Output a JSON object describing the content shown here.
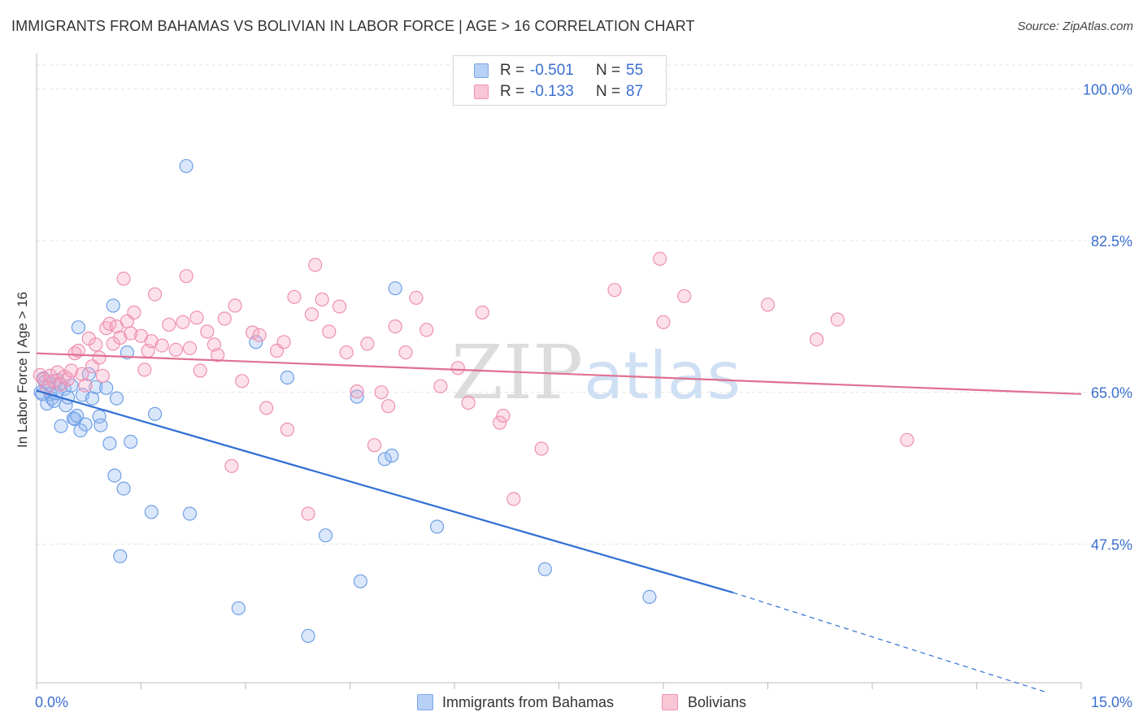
{
  "title": "IMMIGRANTS FROM BAHAMAS VS BOLIVIAN IN LABOR FORCE | AGE > 16 CORRELATION CHART",
  "source": "Source: ZipAtlas.com",
  "watermark": {
    "zip": "ZIP",
    "atlas": "atlas"
  },
  "legend": {
    "rows": [
      {
        "r_label": "R =",
        "r_value": "-0.501",
        "n_label": "N =",
        "n_value": "55",
        "color": "#6f9fe6"
      },
      {
        "r_label": "R =",
        "r_value": "-0.133",
        "n_label": "N =",
        "n_value": "87",
        "color": "#ef8fb1"
      }
    ]
  },
  "bottom_legend": [
    "Immigrants from Bahamas",
    "Bolivians"
  ],
  "chart_data": {
    "type": "scatter",
    "xlabel": "",
    "ylabel": "In Labor Force | Age > 16",
    "xlim": [
      0,
      15
    ],
    "ylim": [
      31.5,
      103.5
    ],
    "x_tick_labels": [
      "0.0%",
      "15.0%"
    ],
    "y_ticks": [
      47.5,
      65.0,
      82.5,
      100.0
    ],
    "y_tick_labels": [
      "47.5%",
      "65.0%",
      "82.5%",
      "100.0%"
    ],
    "grid": "horizontal dashed",
    "legend_position": "top-center",
    "series": [
      {
        "name": "Immigrants from Bahamas",
        "color": "#6f9fe6",
        "fill": "rgba(150,185,240,0.35)",
        "trend": {
          "x": [
            0,
            10
          ],
          "y": [
            65.2,
            41.9
          ],
          "dashed_to_x": 14.5,
          "dashed_end_y": 30.4
        },
        "points": [
          [
            0.06,
            65.0
          ],
          [
            0.1,
            66.6
          ],
          [
            0.12,
            66.2
          ],
          [
            0.15,
            63.7
          ],
          [
            0.18,
            65.9
          ],
          [
            0.2,
            64.8
          ],
          [
            0.22,
            64.3
          ],
          [
            0.25,
            64.0
          ],
          [
            0.3,
            66.4
          ],
          [
            0.33,
            66.0
          ],
          [
            0.35,
            61.1
          ],
          [
            0.4,
            65.4
          ],
          [
            0.42,
            63.5
          ],
          [
            0.45,
            64.4
          ],
          [
            0.5,
            65.8
          ],
          [
            0.53,
            62.0
          ],
          [
            0.55,
            61.9
          ],
          [
            0.58,
            62.3
          ],
          [
            0.6,
            72.5
          ],
          [
            0.63,
            60.6
          ],
          [
            0.66,
            64.7
          ],
          [
            0.7,
            61.3
          ],
          [
            0.75,
            67.1
          ],
          [
            0.8,
            64.3
          ],
          [
            0.85,
            65.6
          ],
          [
            0.9,
            62.2
          ],
          [
            0.92,
            61.2
          ],
          [
            1.0,
            65.5
          ],
          [
            1.05,
            59.1
          ],
          [
            1.1,
            75.0
          ],
          [
            1.12,
            55.4
          ],
          [
            1.15,
            64.3
          ],
          [
            1.2,
            46.1
          ],
          [
            1.25,
            53.9
          ],
          [
            1.3,
            69.6
          ],
          [
            1.35,
            59.3
          ],
          [
            1.65,
            51.2
          ],
          [
            2.15,
            91.1
          ],
          [
            2.2,
            51.0
          ],
          [
            2.9,
            40.1
          ],
          [
            3.15,
            70.8
          ],
          [
            3.6,
            66.7
          ],
          [
            3.9,
            36.9
          ],
          [
            4.15,
            48.5
          ],
          [
            4.6,
            64.5
          ],
          [
            4.65,
            43.2
          ],
          [
            5.0,
            57.3
          ],
          [
            5.1,
            57.7
          ],
          [
            5.15,
            77.0
          ],
          [
            5.75,
            49.5
          ],
          [
            7.3,
            44.6
          ],
          [
            8.8,
            41.4
          ],
          [
            0.08,
            64.8
          ],
          [
            0.28,
            64.9
          ],
          [
            1.7,
            62.5
          ]
        ]
      },
      {
        "name": "Bolivians",
        "color": "#ef8fb1",
        "fill": "rgba(245,170,195,0.35)",
        "trend": {
          "x": [
            0,
            15
          ],
          "y": [
            69.5,
            64.8
          ]
        },
        "points": [
          [
            0.05,
            67.0
          ],
          [
            0.1,
            66.5
          ],
          [
            0.15,
            65.5
          ],
          [
            0.2,
            66.9
          ],
          [
            0.25,
            66.3
          ],
          [
            0.3,
            67.3
          ],
          [
            0.35,
            65.9
          ],
          [
            0.4,
            66.8
          ],
          [
            0.45,
            66.5
          ],
          [
            0.5,
            67.5
          ],
          [
            0.55,
            69.5
          ],
          [
            0.6,
            69.8
          ],
          [
            0.65,
            67.1
          ],
          [
            0.7,
            65.8
          ],
          [
            0.75,
            71.2
          ],
          [
            0.8,
            68.0
          ],
          [
            0.85,
            70.5
          ],
          [
            0.9,
            69.0
          ],
          [
            0.95,
            66.9
          ],
          [
            1.0,
            72.4
          ],
          [
            1.05,
            72.9
          ],
          [
            1.1,
            70.6
          ],
          [
            1.15,
            72.6
          ],
          [
            1.2,
            71.3
          ],
          [
            1.25,
            78.1
          ],
          [
            1.3,
            73.2
          ],
          [
            1.35,
            71.8
          ],
          [
            1.4,
            74.2
          ],
          [
            1.5,
            71.5
          ],
          [
            1.55,
            67.6
          ],
          [
            1.6,
            69.8
          ],
          [
            1.65,
            70.9
          ],
          [
            1.7,
            76.3
          ],
          [
            1.8,
            70.4
          ],
          [
            1.9,
            72.8
          ],
          [
            2.0,
            69.9
          ],
          [
            2.1,
            73.1
          ],
          [
            2.15,
            78.4
          ],
          [
            2.2,
            70.1
          ],
          [
            2.3,
            73.6
          ],
          [
            2.35,
            67.5
          ],
          [
            2.45,
            72.0
          ],
          [
            2.55,
            70.5
          ],
          [
            2.6,
            69.3
          ],
          [
            2.7,
            73.5
          ],
          [
            2.8,
            56.5
          ],
          [
            2.85,
            75.0
          ],
          [
            2.95,
            66.3
          ],
          [
            3.1,
            71.9
          ],
          [
            3.2,
            71.6
          ],
          [
            3.3,
            63.2
          ],
          [
            3.45,
            69.8
          ],
          [
            3.55,
            70.8
          ],
          [
            3.6,
            60.7
          ],
          [
            3.7,
            76.0
          ],
          [
            3.9,
            51.0
          ],
          [
            3.95,
            74.0
          ],
          [
            4.0,
            79.7
          ],
          [
            4.1,
            75.7
          ],
          [
            4.2,
            72.0
          ],
          [
            4.35,
            74.9
          ],
          [
            4.45,
            69.6
          ],
          [
            4.6,
            65.1
          ],
          [
            4.75,
            70.6
          ],
          [
            4.85,
            58.9
          ],
          [
            4.95,
            65.0
          ],
          [
            5.05,
            63.4
          ],
          [
            5.15,
            72.6
          ],
          [
            5.3,
            69.6
          ],
          [
            5.45,
            75.9
          ],
          [
            5.6,
            72.2
          ],
          [
            5.8,
            65.7
          ],
          [
            6.05,
            67.8
          ],
          [
            6.2,
            63.8
          ],
          [
            6.4,
            74.2
          ],
          [
            6.65,
            61.5
          ],
          [
            6.7,
            62.3
          ],
          [
            6.85,
            52.7
          ],
          [
            7.25,
            58.5
          ],
          [
            8.3,
            76.8
          ],
          [
            8.95,
            80.4
          ],
          [
            9.0,
            73.1
          ],
          [
            9.3,
            76.1
          ],
          [
            10.5,
            75.1
          ],
          [
            11.2,
            71.1
          ],
          [
            11.5,
            73.4
          ],
          [
            12.5,
            59.5
          ]
        ]
      }
    ]
  }
}
